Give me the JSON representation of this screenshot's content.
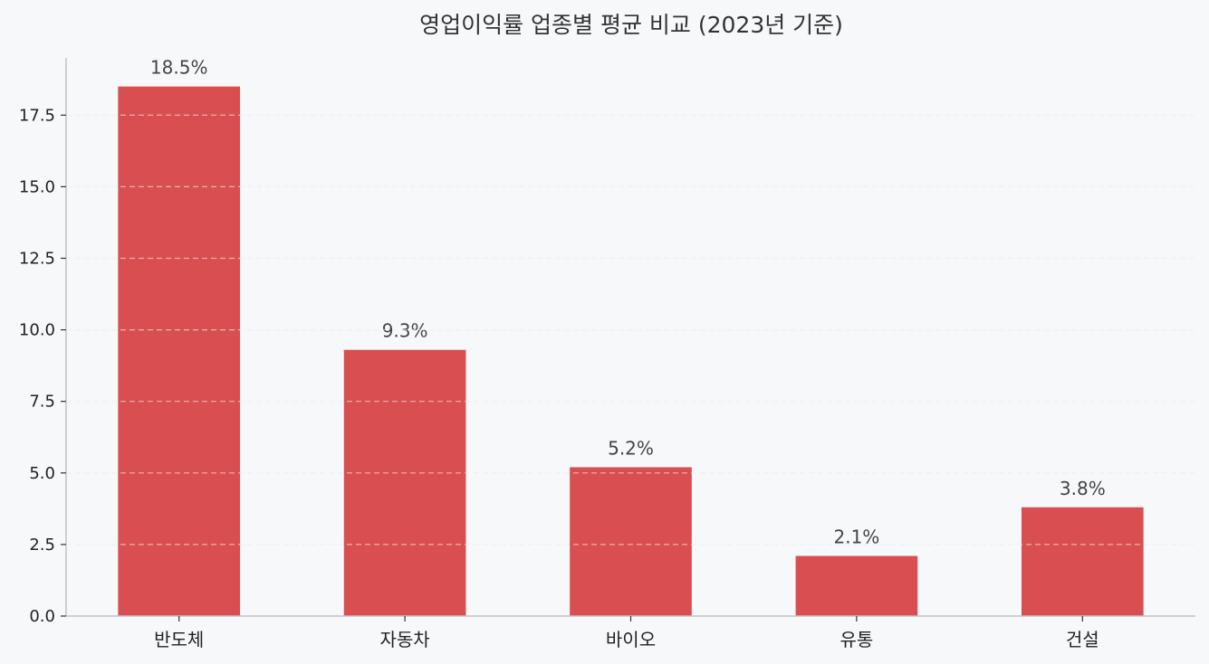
{
  "chart_data": {
    "type": "bar",
    "title": "영업이익률 업종별 평균 비교 (2023년 기준)",
    "xlabel": "",
    "ylabel": "",
    "categories": [
      "반도체",
      "자동차",
      "바이오",
      "유통",
      "건설"
    ],
    "values": [
      18.5,
      9.3,
      5.2,
      2.1,
      3.8
    ],
    "data_labels": [
      "18.5%",
      "9.3%",
      "5.2%",
      "2.1%",
      "3.8%"
    ],
    "ylim": [
      0,
      19.5
    ],
    "yticks": [
      0,
      2.5,
      5,
      7.5,
      10,
      12.5,
      15,
      17.5
    ],
    "ytick_labels": [
      "0.0",
      "2.5",
      "5.0",
      "7.5",
      "10.0",
      "12.5",
      "15.0",
      "17.5"
    ],
    "grid": true,
    "legend": "none",
    "colors": {
      "bar": "#d94f51",
      "background": "#f7f8fa",
      "grid": "#e1e3e6",
      "axis": "#c0c3c8"
    }
  }
}
